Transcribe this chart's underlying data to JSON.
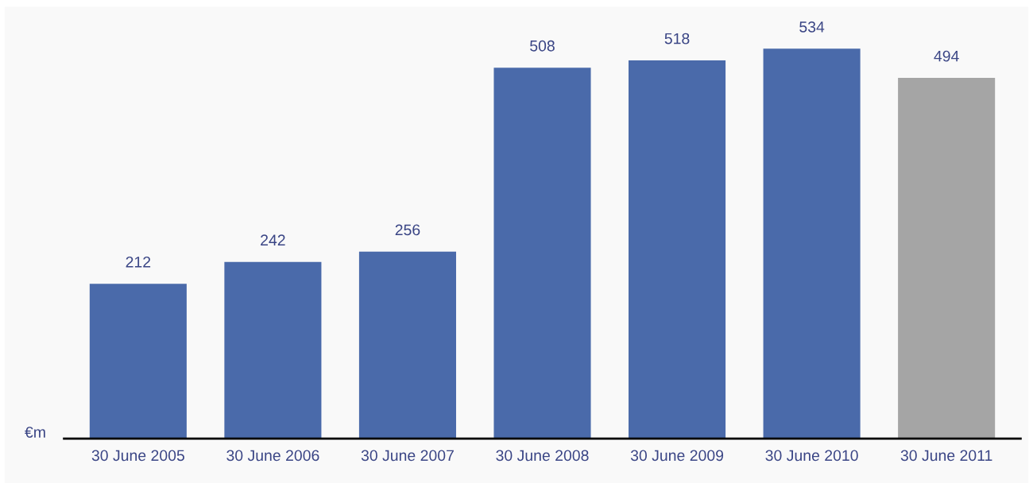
{
  "chart_data": {
    "type": "bar",
    "ylabel": "€m",
    "categories": [
      "30 June 2005",
      "30 June 2006",
      "30 June 2007",
      "30 June 2008",
      "30 June 2009",
      "30 June 2010",
      "30 June 2011"
    ],
    "values": [
      212,
      242,
      256,
      508,
      518,
      534,
      494
    ],
    "colors": [
      "#4a6aaa",
      "#4a6aaa",
      "#4a6aaa",
      "#4a6aaa",
      "#4a6aaa",
      "#4a6aaa",
      "#a5a5a5"
    ],
    "data_labels": true,
    "grid": false,
    "legend": false
  }
}
